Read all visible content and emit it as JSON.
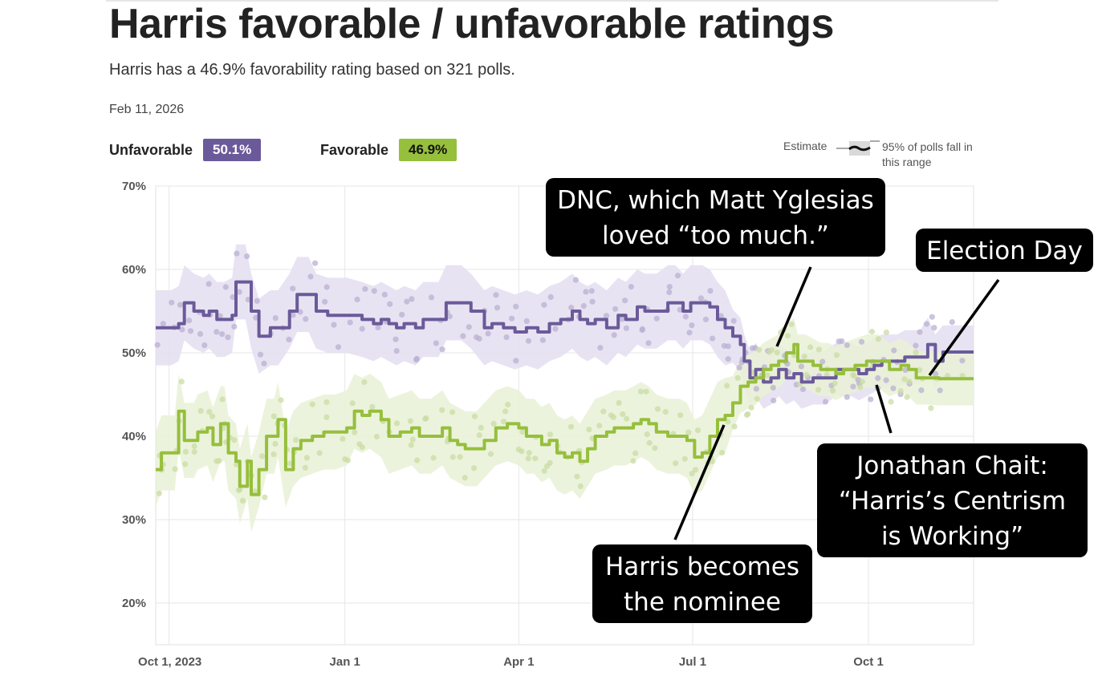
{
  "title": "Harris favorable / unfavorable ratings",
  "subtitle": "Harris has a 46.9% favorability rating based on 321 polls.",
  "date": "Feb 11, 2026",
  "stats": {
    "unfavorable_label": "Unfavorable",
    "unfavorable_value": "50.1%",
    "favorable_label": "Favorable",
    "favorable_value": "46.9%"
  },
  "legend": {
    "estimate": "Estimate",
    "range": "95% of polls fall in this range"
  },
  "colors": {
    "unfavorable": "#6b5a9a",
    "favorable": "#96bf3c",
    "unfavorable_band": "#e4def0",
    "favorable_band": "#e9f1d6",
    "callout_bg": "#000000"
  },
  "callouts": {
    "dnc": "DNC, which Matt Yglesias loved “too much.”",
    "election": "Election Day",
    "chait": "Jonathan Chait: “Harris’s Centrism is Working”",
    "nominee": "Harris becomes the nominee"
  },
  "chart_data": {
    "type": "line",
    "y_ticks": [
      "70%",
      "60%",
      "50%",
      "40%",
      "30%",
      "20%"
    ],
    "x_ticks": [
      "Oct 1, 2023",
      "Jan 1",
      "Apr 1",
      "Jul 1",
      "Oct 1"
    ],
    "ylim": [
      15,
      70
    ],
    "x_unit": "days since Sep 24, 2023",
    "xlim": [
      0,
      428
    ],
    "grid": true,
    "series": [
      {
        "name": "Unfavorable",
        "values": [
          [
            0,
            53
          ],
          [
            8,
            53
          ],
          [
            12,
            53.5
          ],
          [
            15,
            56
          ],
          [
            20,
            55
          ],
          [
            25,
            54.5
          ],
          [
            28,
            55
          ],
          [
            32,
            54
          ],
          [
            36,
            54
          ],
          [
            40,
            54.5
          ],
          [
            42,
            58.5
          ],
          [
            47,
            58.5
          ],
          [
            50,
            55
          ],
          [
            54,
            52
          ],
          [
            60,
            53
          ],
          [
            64,
            53
          ],
          [
            70,
            55
          ],
          [
            74,
            57
          ],
          [
            80,
            57
          ],
          [
            84,
            55
          ],
          [
            90,
            54.5
          ],
          [
            100,
            54.5
          ],
          [
            108,
            54
          ],
          [
            114,
            53.5
          ],
          [
            118,
            54
          ],
          [
            122,
            53.5
          ],
          [
            126,
            53
          ],
          [
            130,
            53.5
          ],
          [
            136,
            53
          ],
          [
            140,
            54
          ],
          [
            148,
            54
          ],
          [
            152,
            56
          ],
          [
            160,
            56
          ],
          [
            165,
            55
          ],
          [
            172,
            53
          ],
          [
            176,
            53.5
          ],
          [
            182,
            53
          ],
          [
            188,
            52.5
          ],
          [
            194,
            53
          ],
          [
            200,
            52.5
          ],
          [
            206,
            53.5
          ],
          [
            212,
            54
          ],
          [
            218,
            55
          ],
          [
            222,
            54
          ],
          [
            226,
            53.5
          ],
          [
            230,
            54
          ],
          [
            236,
            53
          ],
          [
            242,
            54.5
          ],
          [
            246,
            54
          ],
          [
            252,
            55.5
          ],
          [
            256,
            55
          ],
          [
            262,
            55
          ],
          [
            268,
            56
          ],
          [
            272,
            56
          ],
          [
            276,
            55
          ],
          [
            280,
            56
          ],
          [
            286,
            56
          ],
          [
            290,
            55.5
          ],
          [
            294,
            54
          ],
          [
            298,
            53
          ],
          [
            302,
            52
          ],
          [
            306,
            51
          ],
          [
            308,
            49
          ],
          [
            311,
            47
          ],
          [
            314,
            48
          ],
          [
            318,
            46.5
          ],
          [
            322,
            47
          ],
          [
            326,
            48
          ],
          [
            330,
            47
          ],
          [
            334,
            47.5
          ],
          [
            338,
            46.5
          ],
          [
            344,
            47
          ],
          [
            350,
            47
          ],
          [
            356,
            48
          ],
          [
            360,
            48
          ],
          [
            364,
            48
          ],
          [
            368,
            47.5
          ],
          [
            372,
            48
          ],
          [
            376,
            48.5
          ],
          [
            380,
            49
          ],
          [
            384,
            49
          ],
          [
            388,
            49
          ],
          [
            392,
            49.5
          ],
          [
            396,
            49.5
          ],
          [
            400,
            49.5
          ],
          [
            404,
            51
          ],
          [
            408,
            49
          ],
          [
            412,
            50.1
          ],
          [
            428,
            50.1
          ]
        ]
      },
      {
        "name": "Favorable",
        "values": [
          [
            0,
            36
          ],
          [
            3,
            38
          ],
          [
            10,
            38
          ],
          [
            12,
            43
          ],
          [
            15,
            39.5
          ],
          [
            20,
            39.5
          ],
          [
            22,
            40.5
          ],
          [
            27,
            41
          ],
          [
            30,
            39
          ],
          [
            34,
            41.5
          ],
          [
            36,
            41.5
          ],
          [
            38,
            38
          ],
          [
            42,
            37
          ],
          [
            44,
            34
          ],
          [
            48,
            37
          ],
          [
            50,
            33
          ],
          [
            54,
            36
          ],
          [
            58,
            40
          ],
          [
            62,
            40
          ],
          [
            64,
            42
          ],
          [
            68,
            36
          ],
          [
            72,
            38.5
          ],
          [
            76,
            39.5
          ],
          [
            82,
            40
          ],
          [
            88,
            40.5
          ],
          [
            94,
            40.5
          ],
          [
            100,
            41
          ],
          [
            104,
            43
          ],
          [
            108,
            42.5
          ],
          [
            112,
            43
          ],
          [
            118,
            42
          ],
          [
            122,
            40
          ],
          [
            128,
            40.5
          ],
          [
            134,
            41
          ],
          [
            138,
            40
          ],
          [
            144,
            40
          ],
          [
            150,
            41
          ],
          [
            154,
            39.5
          ],
          [
            158,
            39
          ],
          [
            162,
            38.5
          ],
          [
            168,
            38.5
          ],
          [
            172,
            39.5
          ],
          [
            178,
            41
          ],
          [
            184,
            41.5
          ],
          [
            190,
            41
          ],
          [
            194,
            40
          ],
          [
            198,
            40
          ],
          [
            202,
            39
          ],
          [
            206,
            39.5
          ],
          [
            210,
            38
          ],
          [
            214,
            37.5
          ],
          [
            218,
            38
          ],
          [
            222,
            37
          ],
          [
            226,
            38.5
          ],
          [
            230,
            40
          ],
          [
            236,
            40.5
          ],
          [
            240,
            41
          ],
          [
            246,
            41
          ],
          [
            250,
            41.5
          ],
          [
            254,
            42
          ],
          [
            258,
            41.5
          ],
          [
            262,
            40.5
          ],
          [
            268,
            40
          ],
          [
            274,
            40
          ],
          [
            278,
            39.5
          ],
          [
            282,
            37.5
          ],
          [
            286,
            38
          ],
          [
            290,
            40
          ],
          [
            294,
            42
          ],
          [
            298,
            42.5
          ],
          [
            302,
            44
          ],
          [
            306,
            46
          ],
          [
            310,
            46.5
          ],
          [
            314,
            47
          ],
          [
            318,
            48
          ],
          [
            322,
            48.5
          ],
          [
            326,
            49
          ],
          [
            330,
            50
          ],
          [
            334,
            51
          ],
          [
            336,
            49
          ],
          [
            340,
            49
          ],
          [
            344,
            48.5
          ],
          [
            348,
            48
          ],
          [
            352,
            48
          ],
          [
            356,
            47.5
          ],
          [
            360,
            48
          ],
          [
            366,
            48.5
          ],
          [
            372,
            49
          ],
          [
            378,
            49
          ],
          [
            384,
            48
          ],
          [
            390,
            48.5
          ],
          [
            394,
            48
          ],
          [
            398,
            47
          ],
          [
            404,
            47
          ],
          [
            410,
            46.9
          ],
          [
            428,
            46.9
          ]
        ]
      }
    ]
  }
}
